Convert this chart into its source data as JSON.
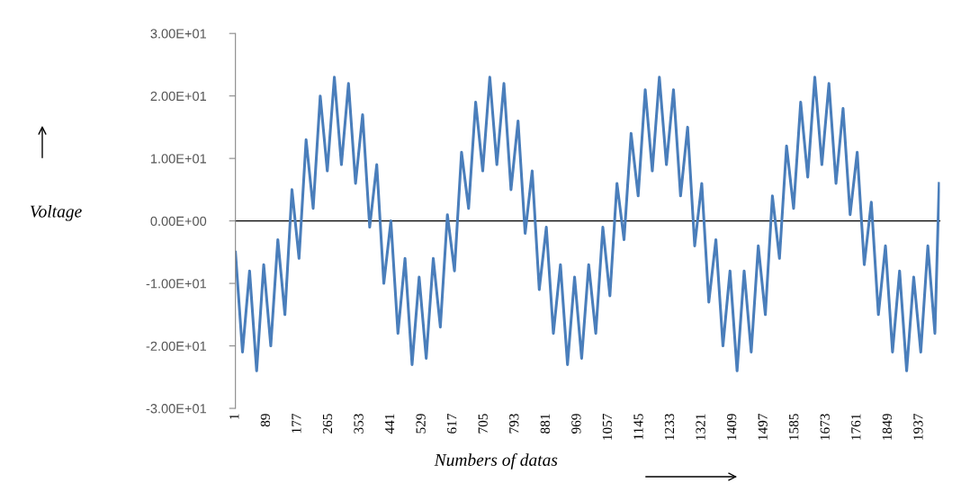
{
  "chart_data": {
    "type": "line",
    "xlabel": "Numbers of datas",
    "ylabel": "Voltage",
    "xlim": [
      1,
      1995
    ],
    "ylim": [
      -30,
      30
    ],
    "xticks": [
      1,
      89,
      177,
      265,
      353,
      441,
      529,
      617,
      705,
      793,
      881,
      969,
      1057,
      1145,
      1233,
      1321,
      1409,
      1497,
      1585,
      1673,
      1761,
      1849,
      1937
    ],
    "yticks": [
      {
        "value": -30,
        "label": "-3.00E+01"
      },
      {
        "value": -20,
        "label": "-2.00E+01"
      },
      {
        "value": -10,
        "label": "-1.00E+01"
      },
      {
        "value": 0,
        "label": "0.00E+00"
      },
      {
        "value": 10,
        "label": "1.00E+01"
      },
      {
        "value": 20,
        "label": "2.00E+01"
      },
      {
        "value": 30,
        "label": "3.00E+01"
      }
    ],
    "x": [
      1,
      21,
      41,
      61,
      81,
      101,
      121,
      141,
      161,
      181,
      201,
      221,
      241,
      261,
      281,
      301,
      321,
      341,
      361,
      381,
      401,
      421,
      441,
      461,
      481,
      501,
      521,
      541,
      561,
      581,
      601,
      621,
      641,
      661,
      681,
      701,
      721,
      741,
      761,
      781,
      801,
      821,
      841,
      861,
      881,
      901,
      921,
      941,
      961,
      981,
      1001,
      1021,
      1041,
      1061,
      1081,
      1101,
      1121,
      1141,
      1161,
      1181,
      1201,
      1221,
      1241,
      1261,
      1281,
      1301,
      1321,
      1341,
      1361,
      1381,
      1401,
      1421,
      1441,
      1461,
      1481,
      1501,
      1521,
      1541,
      1561,
      1581,
      1601,
      1621,
      1641,
      1661,
      1681,
      1701,
      1721,
      1741,
      1761,
      1781,
      1801,
      1821,
      1841,
      1861,
      1881,
      1901,
      1921,
      1941,
      1961,
      1981,
      1993
    ],
    "series": [
      {
        "color": "#4a7ebb",
        "values": [
          -5,
          -21,
          -8,
          -24,
          -7,
          -20,
          -3,
          -15,
          5,
          -6,
          13,
          2,
          20,
          8,
          23,
          9,
          22,
          6,
          17,
          -1,
          9,
          -10,
          0,
          -18,
          -6,
          -23,
          -9,
          -22,
          -6,
          -17,
          1,
          -8,
          11,
          2,
          19,
          8,
          23,
          9,
          22,
          5,
          16,
          -2,
          8,
          -11,
          -1,
          -18,
          -7,
          -23,
          -9,
          -22,
          -7,
          -18,
          -1,
          -12,
          6,
          -3,
          14,
          4,
          21,
          8,
          23,
          9,
          21,
          4,
          15,
          -4,
          6,
          -13,
          -3,
          -20,
          -8,
          -24,
          -8,
          -21,
          -4,
          -15,
          4,
          -6,
          12,
          2,
          19,
          7,
          23,
          9,
          22,
          6,
          18,
          1,
          11,
          -7,
          3,
          -15,
          -4,
          -21,
          -8,
          -24,
          -9,
          -21,
          -4,
          -18,
          6
        ]
      }
    ]
  }
}
